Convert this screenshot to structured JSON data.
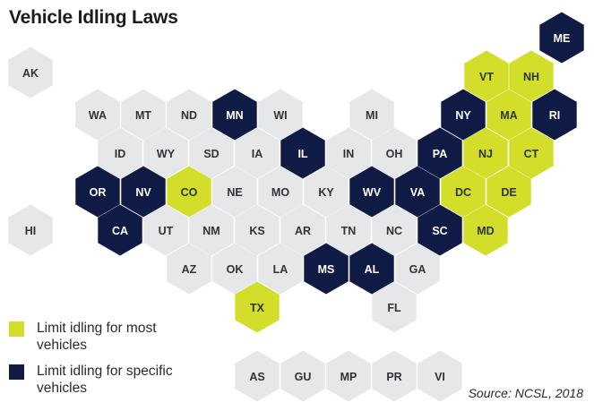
{
  "title": "Vehicle Idling Laws",
  "colors": {
    "most": "#d3de2a",
    "specific": "#0f1a45",
    "none": "#e6e7e8",
    "text_dark": "#2f3338",
    "text_light": "#ffffff"
  },
  "legend": [
    {
      "key": "most",
      "label": "Limit idling for most vehicles"
    },
    {
      "key": "specific",
      "label": "Limit idling for specific vehicles"
    }
  ],
  "source": "Source:  NCSL, 2018",
  "states": [
    {
      "abbr": "ME",
      "status": "specific"
    },
    {
      "abbr": "AK",
      "status": "none"
    },
    {
      "abbr": "VT",
      "status": "most"
    },
    {
      "abbr": "NH",
      "status": "most"
    },
    {
      "abbr": "WA",
      "status": "none"
    },
    {
      "abbr": "MT",
      "status": "none"
    },
    {
      "abbr": "ND",
      "status": "none"
    },
    {
      "abbr": "MN",
      "status": "specific"
    },
    {
      "abbr": "WI",
      "status": "none"
    },
    {
      "abbr": "MI",
      "status": "none"
    },
    {
      "abbr": "NY",
      "status": "specific"
    },
    {
      "abbr": "MA",
      "status": "most"
    },
    {
      "abbr": "RI",
      "status": "specific"
    },
    {
      "abbr": "ID",
      "status": "none"
    },
    {
      "abbr": "WY",
      "status": "none"
    },
    {
      "abbr": "SD",
      "status": "none"
    },
    {
      "abbr": "IA",
      "status": "none"
    },
    {
      "abbr": "IL",
      "status": "specific"
    },
    {
      "abbr": "IN",
      "status": "none"
    },
    {
      "abbr": "OH",
      "status": "none"
    },
    {
      "abbr": "PA",
      "status": "specific"
    },
    {
      "abbr": "NJ",
      "status": "most"
    },
    {
      "abbr": "CT",
      "status": "most"
    },
    {
      "abbr": "OR",
      "status": "specific"
    },
    {
      "abbr": "NV",
      "status": "specific"
    },
    {
      "abbr": "CO",
      "status": "most"
    },
    {
      "abbr": "NE",
      "status": "none"
    },
    {
      "abbr": "MO",
      "status": "none"
    },
    {
      "abbr": "KY",
      "status": "none"
    },
    {
      "abbr": "WV",
      "status": "specific"
    },
    {
      "abbr": "VA",
      "status": "specific"
    },
    {
      "abbr": "DC",
      "status": "most"
    },
    {
      "abbr": "DE",
      "status": "most"
    },
    {
      "abbr": "HI",
      "status": "none"
    },
    {
      "abbr": "CA",
      "status": "specific"
    },
    {
      "abbr": "UT",
      "status": "none"
    },
    {
      "abbr": "NM",
      "status": "none"
    },
    {
      "abbr": "KS",
      "status": "none"
    },
    {
      "abbr": "AR",
      "status": "none"
    },
    {
      "abbr": "TN",
      "status": "none"
    },
    {
      "abbr": "NC",
      "status": "none"
    },
    {
      "abbr": "SC",
      "status": "specific"
    },
    {
      "abbr": "MD",
      "status": "most"
    },
    {
      "abbr": "AZ",
      "status": "none"
    },
    {
      "abbr": "OK",
      "status": "none"
    },
    {
      "abbr": "LA",
      "status": "none"
    },
    {
      "abbr": "MS",
      "status": "specific"
    },
    {
      "abbr": "AL",
      "status": "specific"
    },
    {
      "abbr": "GA",
      "status": "none"
    },
    {
      "abbr": "TX",
      "status": "most"
    },
    {
      "abbr": "FL",
      "status": "none"
    },
    {
      "abbr": "AS",
      "status": "none"
    },
    {
      "abbr": "GU",
      "status": "none"
    },
    {
      "abbr": "MP",
      "status": "none"
    },
    {
      "abbr": "PR",
      "status": "none"
    },
    {
      "abbr": "VI",
      "status": "none"
    }
  ]
}
